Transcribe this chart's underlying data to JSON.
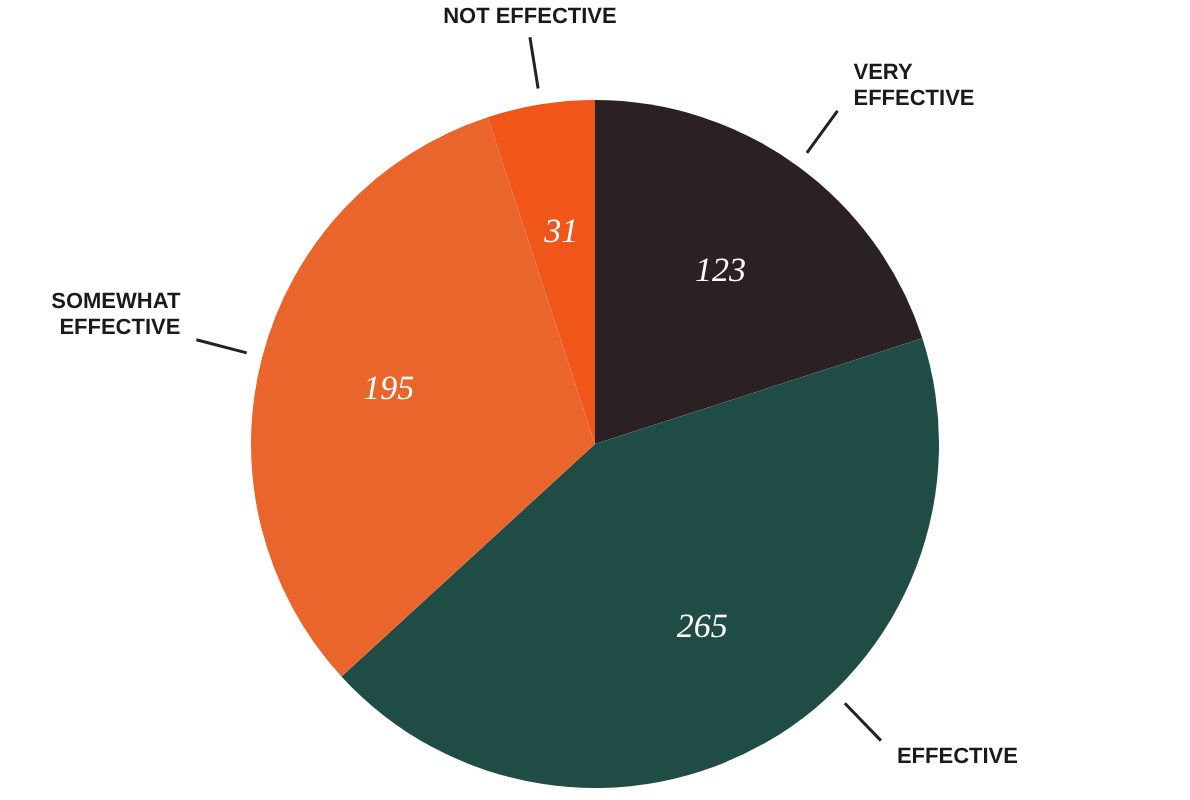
{
  "chart_data": {
    "type": "pie",
    "categories": [
      "VERY EFFECTIVE",
      "EFFECTIVE",
      "SOMEWHAT EFFECTIVE",
      "NOT EFFECTIVE"
    ],
    "values": [
      123,
      265,
      195,
      31
    ],
    "colors": [
      "#2b2024",
      "#1f4d46",
      "#e9652b",
      "#f0561a"
    ],
    "data_labels": true,
    "legend": false
  }
}
